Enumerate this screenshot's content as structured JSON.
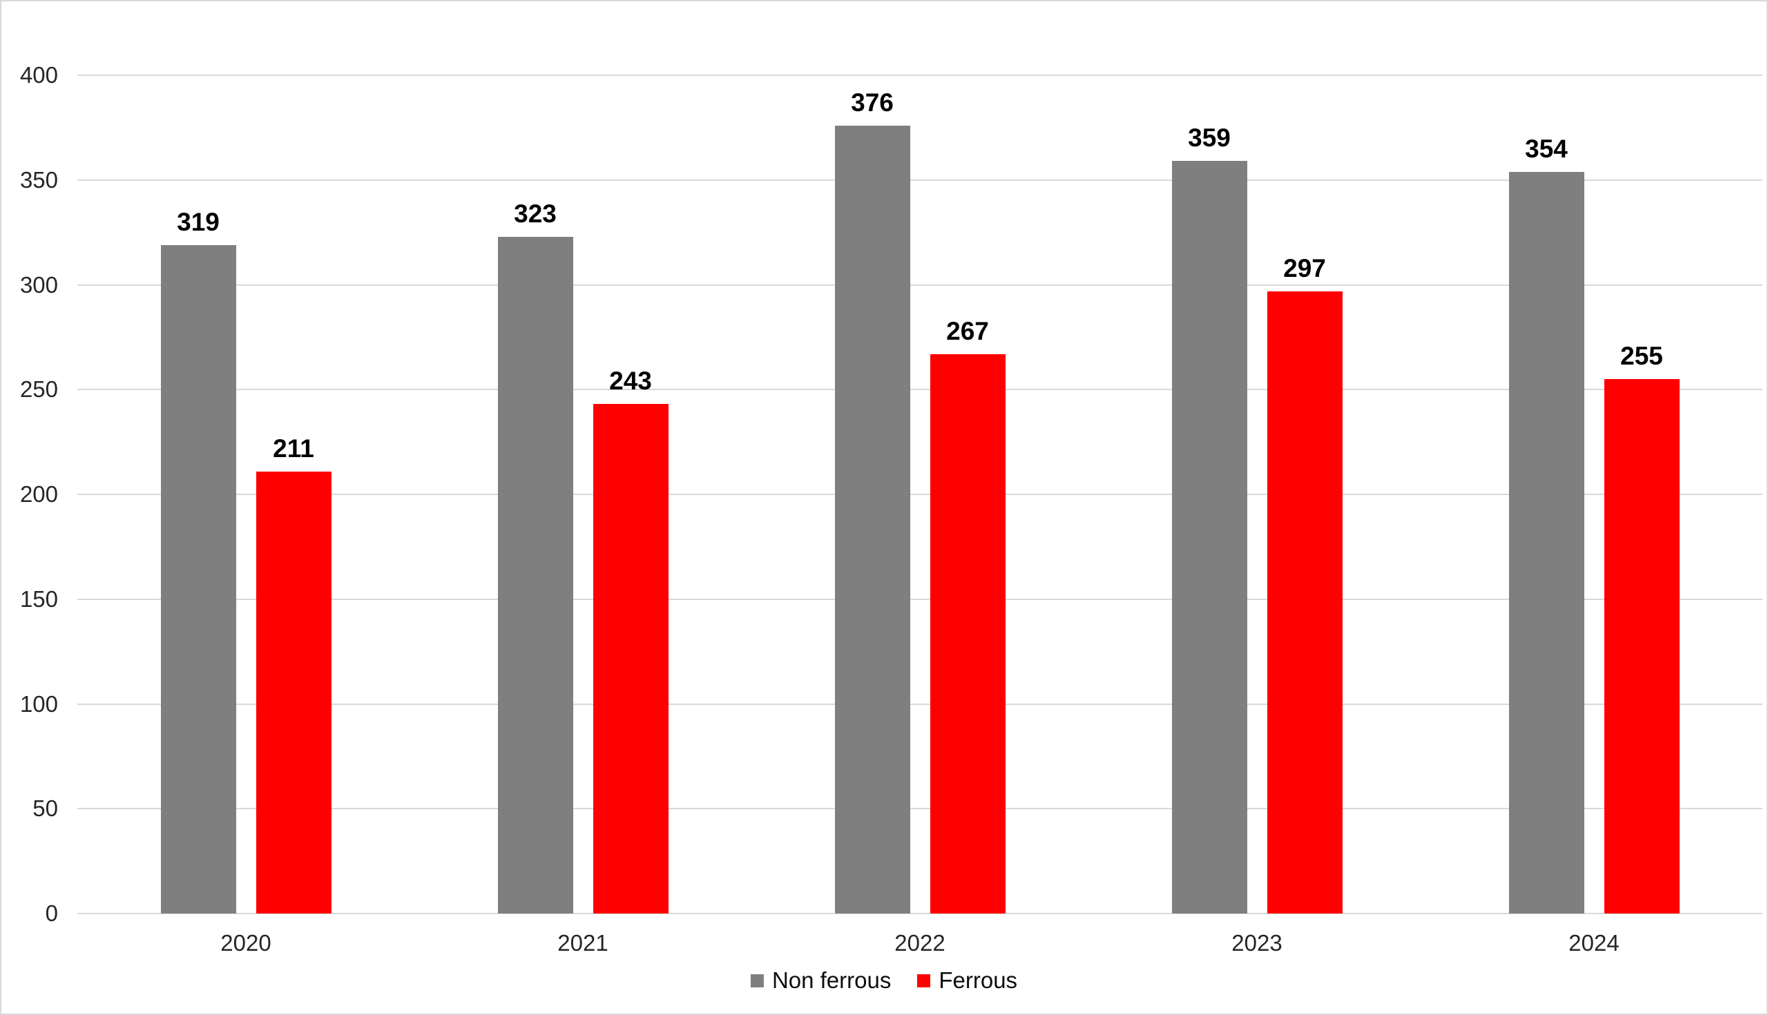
{
  "chart_data": {
    "type": "bar",
    "title": "",
    "xlabel": "",
    "ylabel": "",
    "categories": [
      "2020",
      "2021",
      "2022",
      "2023",
      "2024"
    ],
    "series": [
      {
        "name": "Non ferrous",
        "color": "#7f7f7f",
        "values": [
          319,
          323,
          376,
          359,
          354
        ]
      },
      {
        "name": "Ferrous",
        "color": "#ff0000",
        "values": [
          211,
          243,
          267,
          297,
          255
        ]
      }
    ],
    "ylim": [
      0,
      400
    ],
    "yticks": [
      0,
      50,
      100,
      150,
      200,
      250,
      300,
      350,
      400
    ],
    "grid": true,
    "data_labels": true,
    "legend_position": "bottom-center"
  },
  "colors": {
    "background": "#ffffff",
    "border": "#d9d9d9",
    "gridline": "#d9d9d9",
    "axis_line": "#d9d9d9",
    "tick_text": "#262626",
    "data_label_text": "#000000"
  }
}
